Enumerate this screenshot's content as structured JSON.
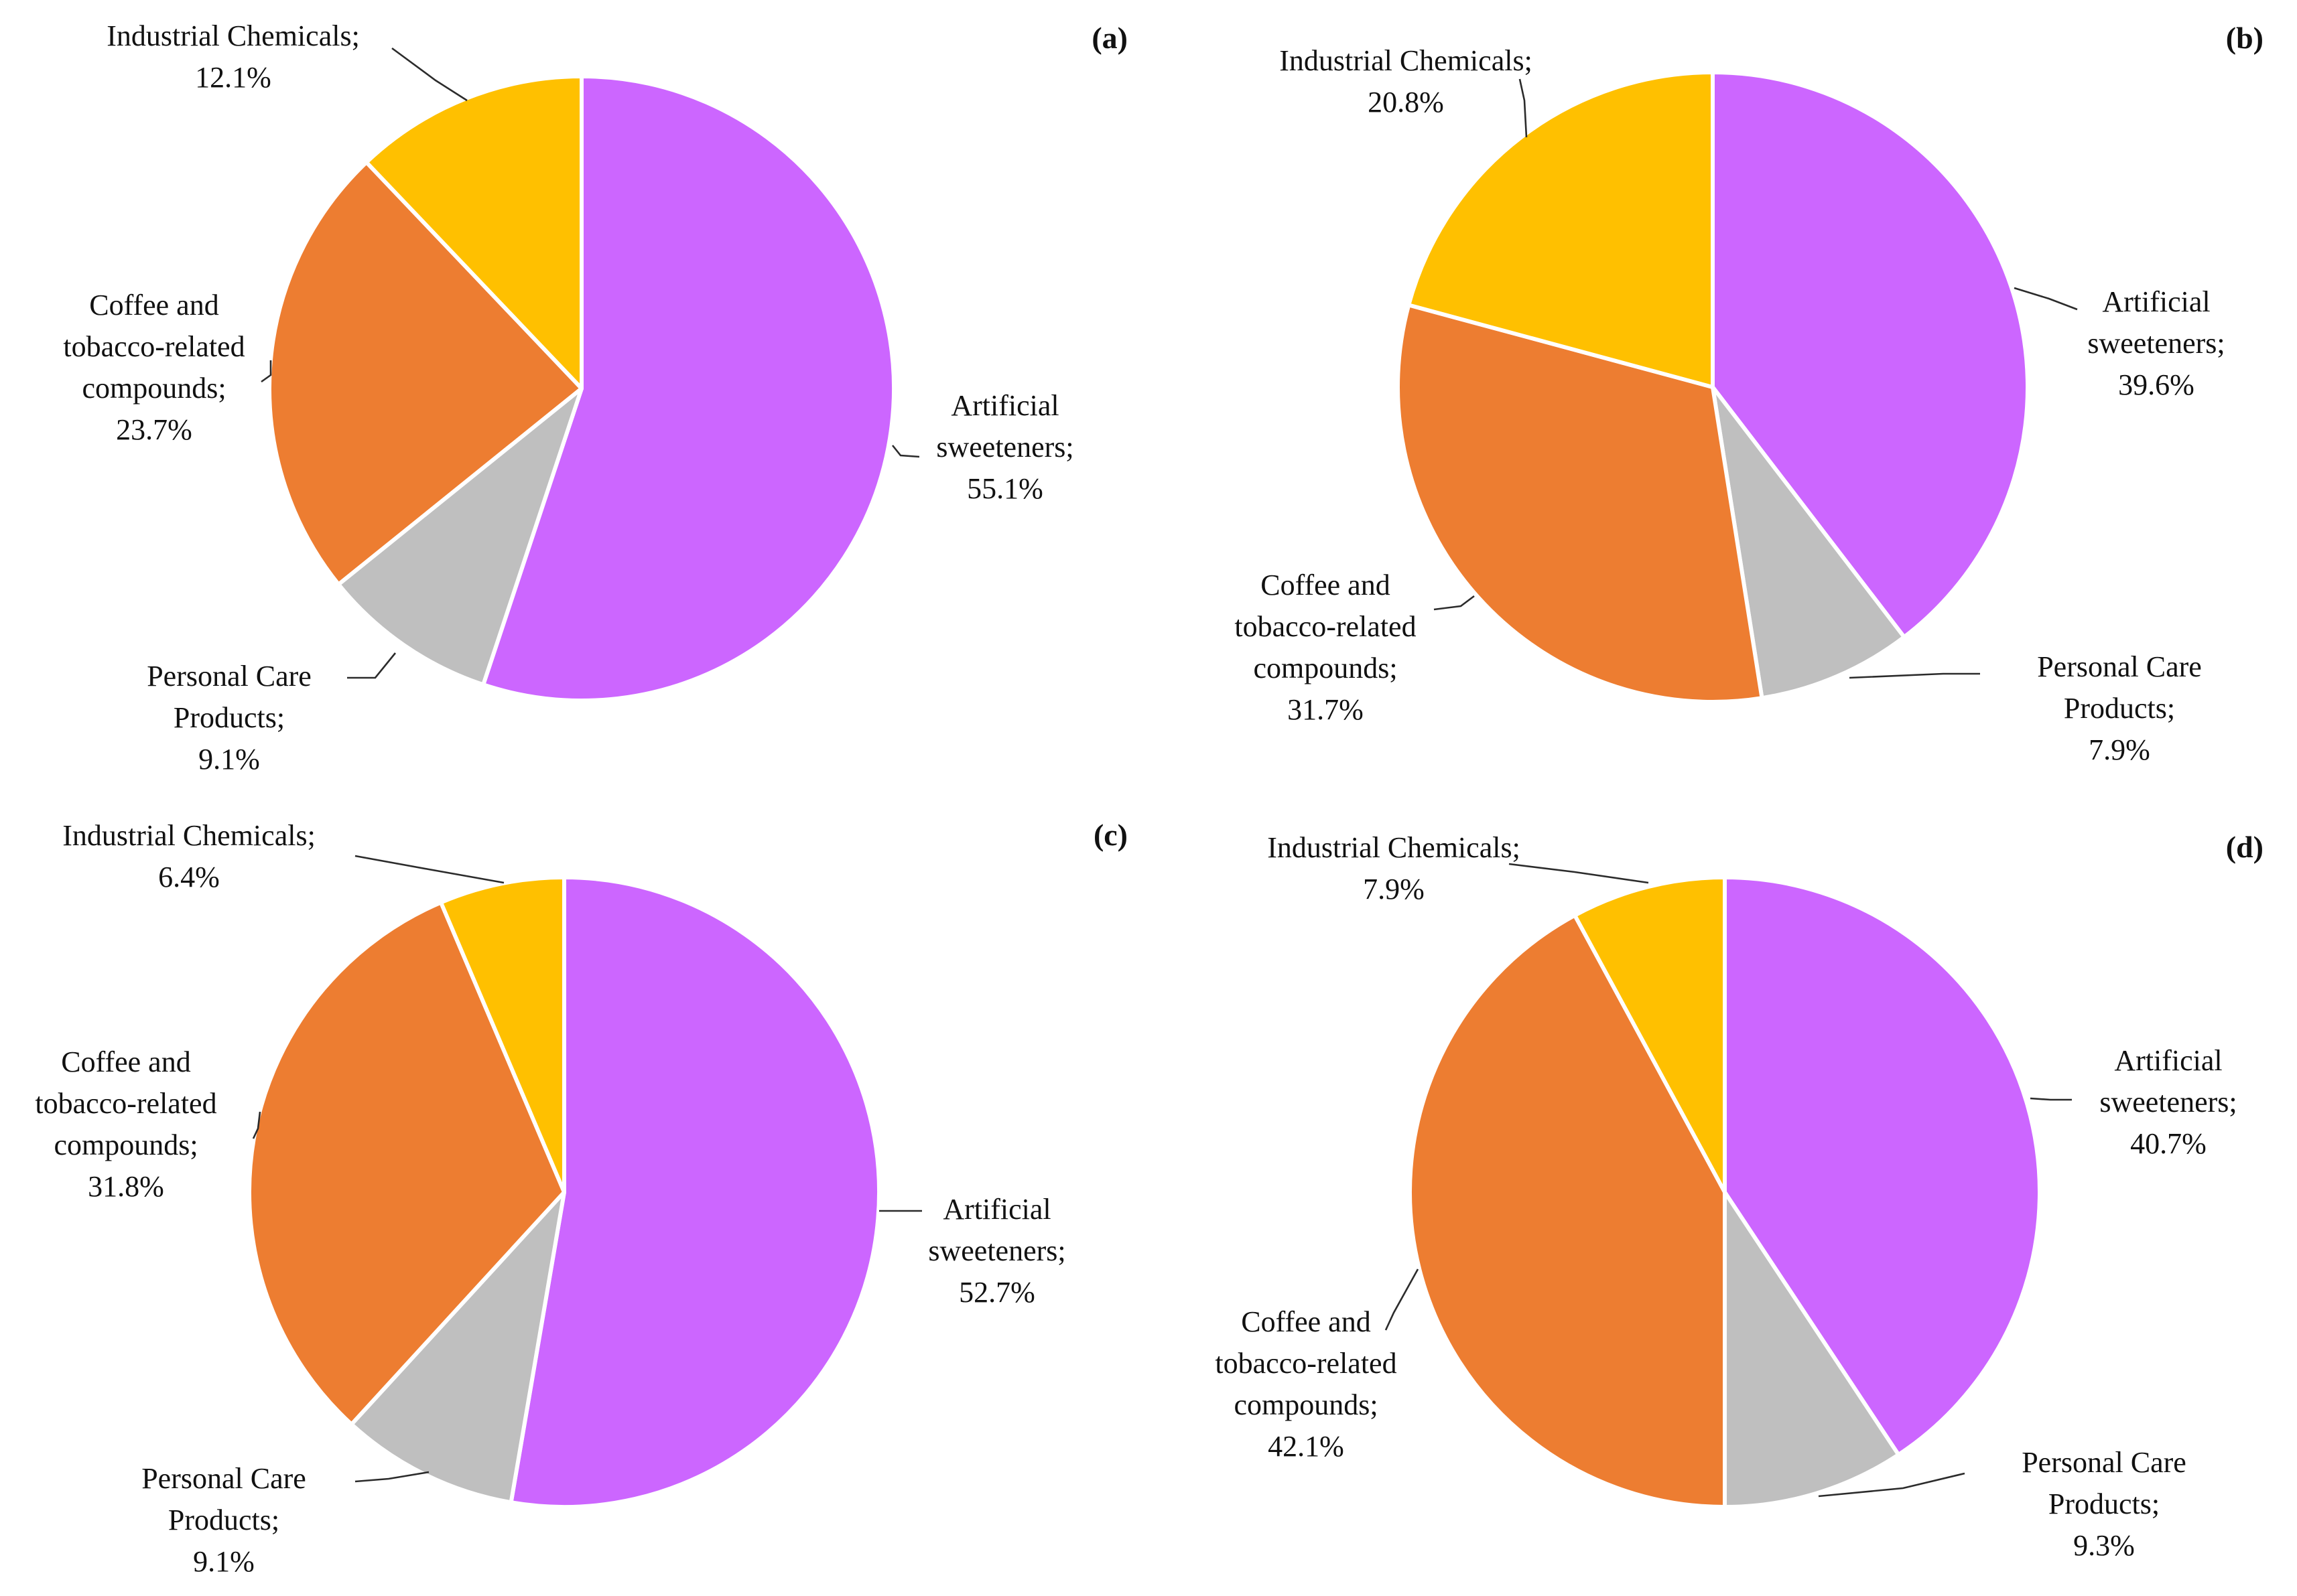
{
  "chart_data": [
    {
      "type": "pie",
      "panel_label": "(a)",
      "slices": [
        {
          "label": "Artificial sweeteners",
          "value": 55.1,
          "display": "55.1%",
          "color": "#CC66FF"
        },
        {
          "label": "Personal Care Products",
          "value": 9.1,
          "display": "9.1%",
          "color": "#BFBFBF"
        },
        {
          "label": "Coffee and tobacco-related compounds",
          "value": 23.7,
          "display": "23.7%",
          "color": "#ED7D31"
        },
        {
          "label": "Industrial Chemicals",
          "value": 12.1,
          "display": "12.1%",
          "color": "#FFC000"
        }
      ]
    },
    {
      "type": "pie",
      "panel_label": "(b)",
      "slices": [
        {
          "label": "Artificial sweeteners",
          "value": 39.6,
          "display": "39.6%",
          "color": "#CC66FF"
        },
        {
          "label": "Personal Care Products",
          "value": 7.9,
          "display": "7.9%",
          "color": "#BFBFBF"
        },
        {
          "label": "Coffee and tobacco-related compounds",
          "value": 31.7,
          "display": "31.7%",
          "color": "#ED7D31"
        },
        {
          "label": "Industrial Chemicals",
          "value": 20.8,
          "display": "20.8%",
          "color": "#FFC000"
        }
      ]
    },
    {
      "type": "pie",
      "panel_label": "(c)",
      "slices": [
        {
          "label": "Artificial sweeteners",
          "value": 52.7,
          "display": "52.7%",
          "color": "#CC66FF"
        },
        {
          "label": "Personal Care Products",
          "value": 9.1,
          "display": "9.1%",
          "color": "#BFBFBF"
        },
        {
          "label": "Coffee and tobacco-related compounds",
          "value": 31.8,
          "display": "31.8%",
          "color": "#ED7D31"
        },
        {
          "label": "Industrial Chemicals",
          "value": 6.4,
          "display": "6.4%",
          "color": "#FFC000"
        }
      ]
    },
    {
      "type": "pie",
      "panel_label": "(d)",
      "slices": [
        {
          "label": "Artificial sweeteners",
          "value": 40.7,
          "display": "40.7%",
          "color": "#CC66FF"
        },
        {
          "label": "Personal Care Products",
          "value": 9.3,
          "display": "9.3%",
          "color": "#BFBFBF"
        },
        {
          "label": "Coffee and tobacco-related compounds",
          "value": 42.1,
          "display": "42.1%",
          "color": "#ED7D31"
        },
        {
          "label": "Industrial Chemicals",
          "value": 7.9,
          "display": "7.9%",
          "color": "#FFC000"
        }
      ]
    }
  ]
}
